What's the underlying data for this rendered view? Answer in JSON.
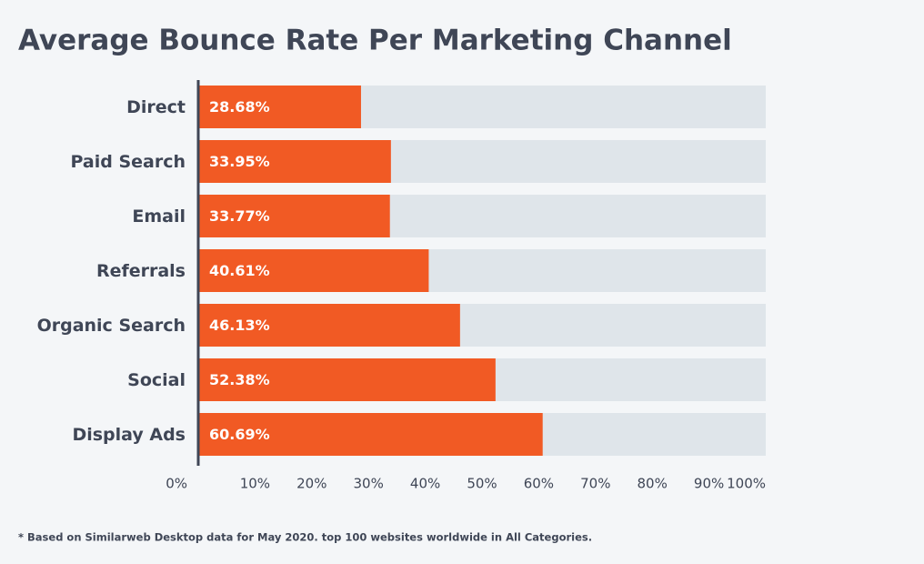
{
  "chart_data": {
    "type": "hbar",
    "title": "Average Bounce Rate Per Marketing Channel",
    "categories": [
      "Direct",
      "Paid Search",
      "Email",
      "Referrals",
      "Organic Search",
      "Social",
      "Display Ads"
    ],
    "values": [
      28.68,
      33.95,
      33.77,
      40.61,
      46.13,
      52.38,
      60.69
    ],
    "value_labels": [
      "28.68%",
      "33.95%",
      "33.77%",
      "40.61%",
      "46.13%",
      "52.38%",
      "60.69%"
    ],
    "color": "#f15a24",
    "xlim": [
      0,
      100
    ],
    "xticks": [
      {
        "value": 0,
        "label": "0%"
      },
      {
        "value": 10,
        "label": "10%"
      },
      {
        "value": 20,
        "label": "20%"
      },
      {
        "value": 30,
        "label": "30%"
      },
      {
        "value": 40,
        "label": "40%"
      },
      {
        "value": 50,
        "label": "50%"
      },
      {
        "value": 60,
        "label": "60%"
      },
      {
        "value": 70,
        "label": "70%"
      },
      {
        "value": 80,
        "label": "80%"
      },
      {
        "value": 90,
        "label": "90%"
      },
      {
        "value": 100,
        "label": "100%"
      }
    ],
    "footnote": "* Based on Similarweb Desktop data for May 2020. top 100 websites worldwide in All Categories."
  }
}
